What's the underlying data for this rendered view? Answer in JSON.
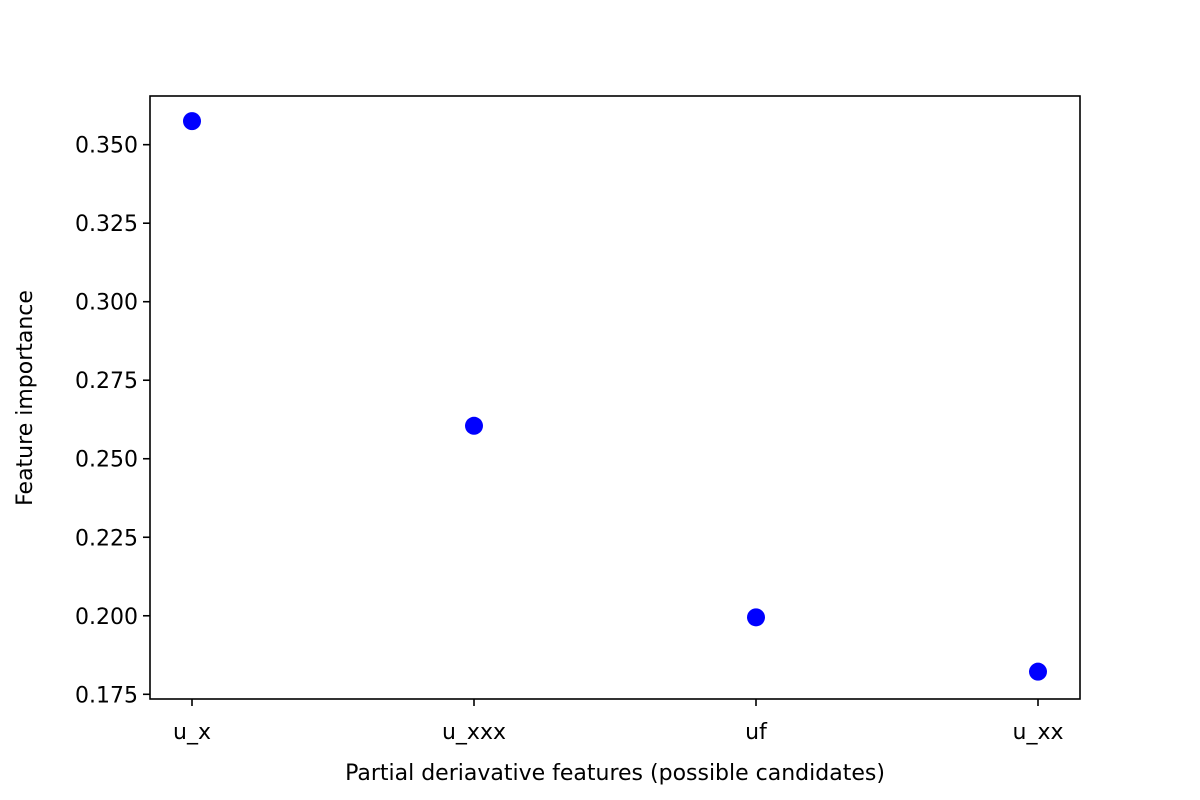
{
  "chart_data": {
    "type": "scatter",
    "title": "",
    "xlabel": "Partial deriavative features (possible candidates)",
    "ylabel": "Feature importance",
    "categories": [
      "u_x",
      "u_xxx",
      "uf",
      "u_xx"
    ],
    "values": [
      0.3575,
      0.2605,
      0.1995,
      0.1822
    ],
    "ylim": [
      0.1735,
      0.3655
    ],
    "yticks": [
      0.175,
      0.2,
      0.225,
      0.25,
      0.275,
      0.3,
      0.325,
      0.35
    ],
    "ytick_labels": [
      "0.175",
      "0.200",
      "0.225",
      "0.250",
      "0.275",
      "0.300",
      "0.325",
      "0.350"
    ],
    "marker_color": "#0000ff",
    "grid": false,
    "legend": "none"
  }
}
